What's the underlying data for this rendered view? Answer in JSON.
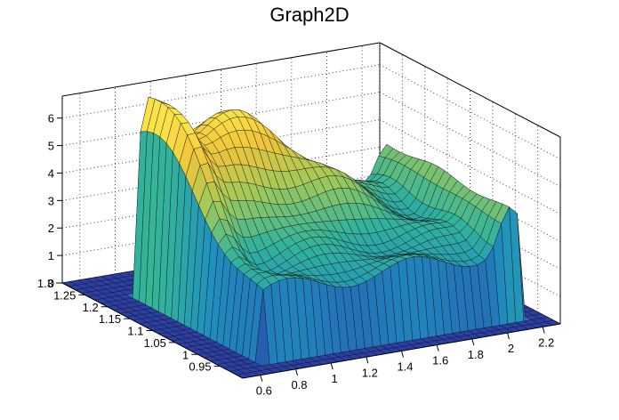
{
  "chart_data": {
    "type": "surface",
    "title": "Graph2D",
    "x_axis": {
      "range": [
        0.5,
        2.3
      ],
      "ticks": [
        "0.6",
        "0.8",
        "1",
        "1.2",
        "1.4",
        "1.6",
        "1.8",
        "2",
        "2.2"
      ]
    },
    "y_axis": {
      "range": [
        0.9,
        1.3
      ],
      "ticks": [
        "0.95",
        "1",
        "1.05",
        "1.1",
        "1.15",
        "1.2",
        "1.25",
        "1.3"
      ]
    },
    "z_axis": {
      "range": [
        0,
        6.8
      ],
      "ticks": [
        "0",
        "1",
        "2",
        "3",
        "4",
        "5",
        "6"
      ]
    },
    "grid": true,
    "colormap": "viridis-like (blue to yellow)",
    "description_values": {
      "plateau_level": 2.5,
      "central_peak_z": 6.5,
      "outer_floor_z": 0,
      "front_wall_z": 2.6,
      "left_ridge_z": 5.2,
      "right_ridge_z": 4.0
    },
    "colors": {
      "low": "#2b4fb0",
      "mid": "#2aa79a",
      "high": "#f5d03a",
      "top": "#fde93b"
    }
  }
}
